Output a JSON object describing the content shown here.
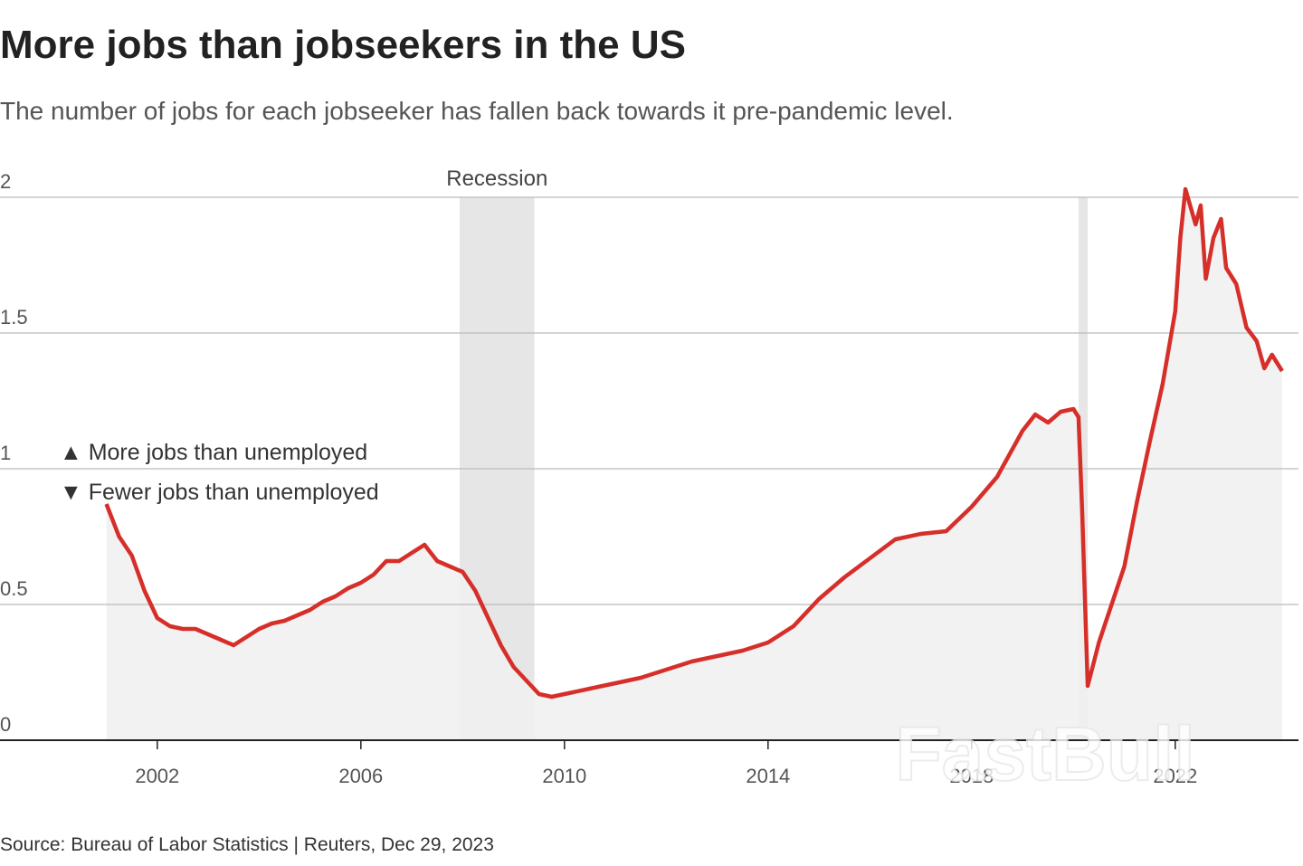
{
  "chart_data": {
    "type": "line",
    "title": "More jobs than jobseekers in the US",
    "subtitle": "The number of jobs for each jobseeker has fallen back towards it pre-pandemic level.",
    "source": "Source: Bureau of Labor Statistics | Reuters, Dec 29, 2023",
    "annotations": [
      "▲ More jobs than unemployed",
      "▼ Fewer jobs than unemployed"
    ],
    "recession_label": "Recession",
    "recessions": [
      [
        2007.94,
        2009.41
      ],
      [
        2020.1,
        2020.28
      ]
    ],
    "watermark": "FastBull",
    "color": "#d62f2a",
    "area_color": "#f0f0f0",
    "x": [
      2001.0,
      2001.25,
      2001.5,
      2001.75,
      2002.0,
      2002.25,
      2002.5,
      2002.75,
      2003.0,
      2003.25,
      2003.5,
      2003.75,
      2004.0,
      2004.25,
      2004.5,
      2004.75,
      2005.0,
      2005.25,
      2005.5,
      2005.75,
      2006.0,
      2006.25,
      2006.5,
      2006.75,
      2007.0,
      2007.25,
      2007.5,
      2007.75,
      2008.0,
      2008.25,
      2008.5,
      2008.75,
      2009.0,
      2009.25,
      2009.5,
      2009.75,
      2010.0,
      2010.5,
      2011.0,
      2011.5,
      2012.0,
      2012.5,
      2013.0,
      2013.5,
      2014.0,
      2014.5,
      2015.0,
      2015.5,
      2016.0,
      2016.5,
      2017.0,
      2017.5,
      2018.0,
      2018.5,
      2019.0,
      2019.25,
      2019.5,
      2019.75,
      2020.0,
      2020.1,
      2020.17,
      2020.28,
      2020.5,
      2020.75,
      2021.0,
      2021.25,
      2021.5,
      2021.75,
      2022.0,
      2022.1,
      2022.2,
      2022.4,
      2022.5,
      2022.6,
      2022.75,
      2022.9,
      2023.0,
      2023.2,
      2023.4,
      2023.6,
      2023.75,
      2023.9,
      2024.1
    ],
    "values": [
      0.87,
      0.75,
      0.68,
      0.55,
      0.45,
      0.42,
      0.41,
      0.41,
      0.39,
      0.37,
      0.35,
      0.38,
      0.41,
      0.43,
      0.44,
      0.46,
      0.48,
      0.51,
      0.53,
      0.56,
      0.58,
      0.61,
      0.66,
      0.66,
      0.69,
      0.72,
      0.66,
      0.64,
      0.62,
      0.55,
      0.45,
      0.35,
      0.27,
      0.22,
      0.17,
      0.16,
      0.17,
      0.19,
      0.21,
      0.23,
      0.26,
      0.29,
      0.31,
      0.33,
      0.36,
      0.42,
      0.52,
      0.6,
      0.67,
      0.74,
      0.76,
      0.77,
      0.86,
      0.97,
      1.14,
      1.2,
      1.17,
      1.21,
      1.22,
      1.19,
      0.85,
      0.2,
      0.36,
      0.5,
      0.64,
      0.88,
      1.1,
      1.31,
      1.58,
      1.85,
      2.03,
      1.9,
      1.97,
      1.7,
      1.85,
      1.92,
      1.74,
      1.68,
      1.52,
      1.47,
      1.37,
      1.42,
      1.36
    ],
    "xlim": [
      1998.91,
      2024.51
    ],
    "xticks": [
      2002,
      2006,
      2010,
      2014,
      2018,
      2022
    ],
    "ylim": [
      0,
      2
    ],
    "yticks": [
      0,
      0.5,
      1,
      1.5,
      2
    ],
    "grid": true
  }
}
